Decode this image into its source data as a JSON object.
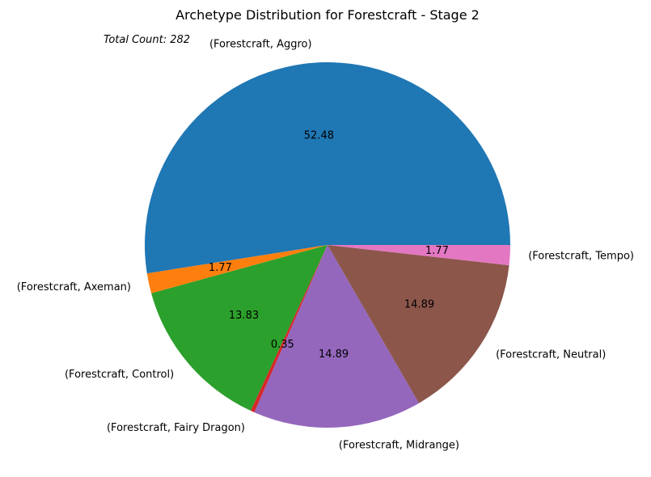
{
  "chart_data": {
    "type": "pie",
    "title": "Archetype Distribution for Forestcraft - Stage 2",
    "annotation": "Total Count: 282",
    "start_angle_deg": 0,
    "direction": "counterclockwise",
    "slices": [
      {
        "label": "(Forestcraft, Aggro)",
        "value": 52.48,
        "color": "#1f77b4"
      },
      {
        "label": "(Forestcraft, Axeman)",
        "value": 1.77,
        "color": "#ff7f0e"
      },
      {
        "label": "(Forestcraft, Control)",
        "value": 13.83,
        "color": "#2ca02c"
      },
      {
        "label": "(Forestcraft, Fairy Dragon)",
        "value": 0.35,
        "color": "#d62728"
      },
      {
        "label": "(Forestcraft, Midrange)",
        "value": 14.89,
        "color": "#9467bd"
      },
      {
        "label": "(Forestcraft, Neutral)",
        "value": 14.89,
        "color": "#8c564b"
      },
      {
        "label": "(Forestcraft, Tempo)",
        "value": 1.77,
        "color": "#e377c2"
      }
    ]
  }
}
